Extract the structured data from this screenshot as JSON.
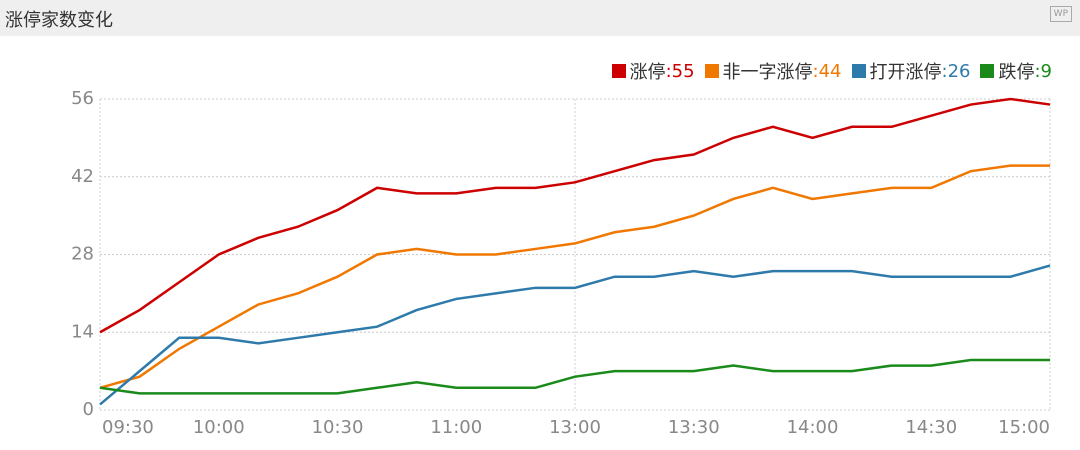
{
  "chart_data": {
    "type": "line",
    "title": "涨停家数变化",
    "logo_text": "WP",
    "categories": [
      "09:30",
      null,
      null,
      "10:00",
      null,
      null,
      "10:30",
      null,
      null,
      "11:00",
      null,
      null,
      "13:00",
      null,
      null,
      "13:30",
      null,
      null,
      "14:00",
      null,
      null,
      "14:30",
      null,
      null,
      "15:00"
    ],
    "series": [
      {
        "name": "涨停",
        "legend_label": ":55",
        "color": "#cc0000",
        "values": [
          14,
          18,
          23,
          28,
          31,
          33,
          36,
          40,
          39,
          39,
          40,
          40,
          41,
          43,
          45,
          46,
          49,
          51,
          49,
          51,
          51,
          53,
          55,
          56,
          55
        ]
      },
      {
        "name": "非一字涨停",
        "legend_label": ":44",
        "color": "#f07800",
        "values": [
          4,
          6,
          11,
          15,
          19,
          21,
          24,
          28,
          29,
          28,
          28,
          29,
          30,
          32,
          33,
          35,
          38,
          40,
          38,
          39,
          40,
          40,
          43,
          44,
          44
        ]
      },
      {
        "name": "打开涨停",
        "legend_label": ":26",
        "color": "#2e7bab",
        "values": [
          1,
          7,
          13,
          13,
          12,
          13,
          14,
          15,
          18,
          20,
          21,
          22,
          22,
          24,
          24,
          25,
          24,
          25,
          25,
          25,
          24,
          24,
          24,
          24,
          26
        ]
      },
      {
        "name": "跌停",
        "legend_label": ":9",
        "color": "#1a8a1a",
        "values": [
          4,
          3,
          3,
          3,
          3,
          3,
          3,
          4,
          5,
          4,
          4,
          4,
          6,
          7,
          7,
          7,
          8,
          7,
          7,
          7,
          8,
          8,
          9,
          9,
          9
        ]
      }
    ],
    "ylim": [
      0,
      56
    ],
    "yticks": [
      0,
      14,
      28,
      42,
      56
    ],
    "grid": true
  }
}
